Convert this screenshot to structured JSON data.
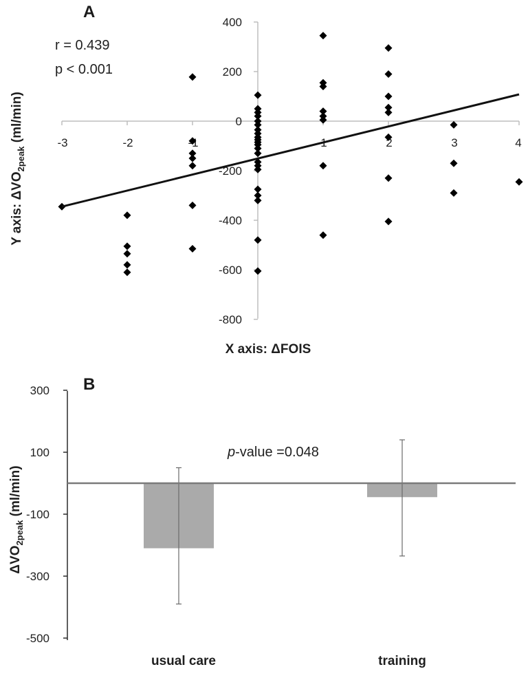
{
  "chart_data": [
    {
      "type": "scatter",
      "panel": "A",
      "xlabel": "X axis: ΔFOIS",
      "ylabel_prefix": "Y axis: ΔVO",
      "ylabel_sub": "2peak",
      "ylabel_suffix": " (ml/min)",
      "xlim": [
        -3,
        4
      ],
      "ylim": [
        -800,
        400
      ],
      "x_ticks": [
        "-3",
        "-2",
        "-1",
        "0",
        "1",
        "2",
        "3",
        "4"
      ],
      "y_ticks": [
        "400",
        "200",
        "0",
        "-200",
        "-400",
        "-600",
        "-800"
      ],
      "annotations": [
        "r = 0.439",
        "p < 0.001"
      ],
      "trendline": {
        "x": [
          -3,
          4
        ],
        "y": [
          -345,
          108
        ]
      },
      "points": [
        [
          -3,
          -345
        ],
        [
          -2,
          -380
        ],
        [
          -2,
          -505
        ],
        [
          -2,
          -535
        ],
        [
          -2,
          -580
        ],
        [
          -2,
          -610
        ],
        [
          -1,
          178
        ],
        [
          -1,
          -80
        ],
        [
          -1,
          -130
        ],
        [
          -1,
          -150
        ],
        [
          -1,
          -180
        ],
        [
          -1,
          -340
        ],
        [
          -1,
          -515
        ],
        [
          0,
          105
        ],
        [
          0,
          50
        ],
        [
          0,
          35
        ],
        [
          0,
          20
        ],
        [
          0,
          0
        ],
        [
          0,
          -15
        ],
        [
          0,
          -35
        ],
        [
          0,
          -50
        ],
        [
          0,
          -65
        ],
        [
          0,
          -75
        ],
        [
          0,
          -85
        ],
        [
          0,
          -95
        ],
        [
          0,
          -110
        ],
        [
          0,
          -130
        ],
        [
          0,
          -165
        ],
        [
          0,
          -180
        ],
        [
          0,
          -195
        ],
        [
          0,
          -275
        ],
        [
          0,
          -300
        ],
        [
          0,
          -320
        ],
        [
          0,
          -480
        ],
        [
          0,
          -605
        ],
        [
          1,
          345
        ],
        [
          1,
          155
        ],
        [
          1,
          140
        ],
        [
          1,
          40
        ],
        [
          1,
          20
        ],
        [
          1,
          5
        ],
        [
          1,
          -180
        ],
        [
          1,
          -460
        ],
        [
          2,
          295
        ],
        [
          2,
          190
        ],
        [
          2,
          100
        ],
        [
          2,
          55
        ],
        [
          2,
          35
        ],
        [
          2,
          -65
        ],
        [
          2,
          -230
        ],
        [
          2,
          -405
        ],
        [
          3,
          -15
        ],
        [
          3,
          -170
        ],
        [
          3,
          -290
        ],
        [
          4,
          -245
        ]
      ]
    },
    {
      "type": "bar",
      "panel": "B",
      "categories": [
        "usual care",
        "training"
      ],
      "values": [
        -210,
        -45
      ],
      "error_upper": [
        50,
        140
      ],
      "error_lower": [
        -390,
        -235
      ],
      "ylabel_prefix": "ΔVO",
      "ylabel_sub": "2peak",
      "ylabel_suffix": " (ml/min)",
      "ylim": [
        -500,
        300
      ],
      "y_ticks": [
        "300",
        "100",
        "-100",
        "-300",
        "-500"
      ],
      "annotation_italic": "p",
      "annotation_rest": "-value =0.048",
      "bar_color": "#aaaaaa"
    }
  ]
}
